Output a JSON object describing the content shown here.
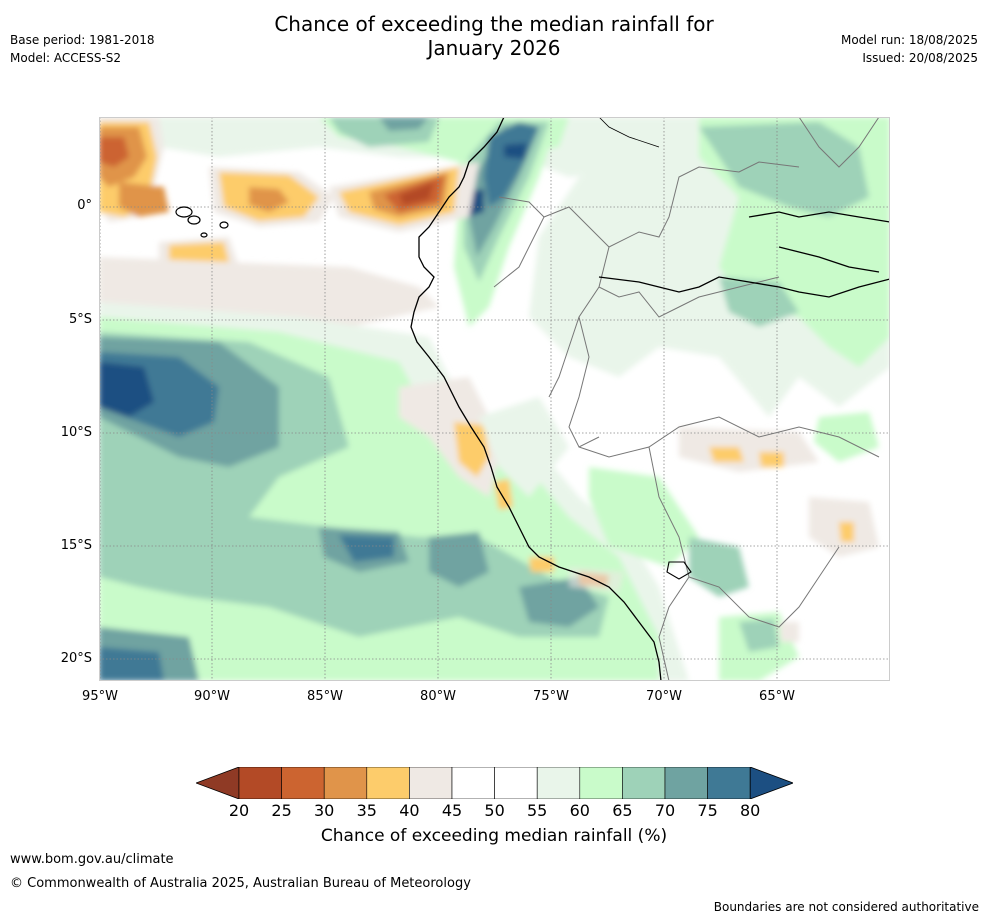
{
  "header": {
    "title_line1": "Chance of exceeding the median rainfall for",
    "title_line2": "January 2026",
    "base_period": "Base period: 1981-2018",
    "model": "Model: ACCESS-S2",
    "model_run": "Model run: 18/08/2025",
    "issued": "Issued: 20/08/2025"
  },
  "map": {
    "lat_labels": [
      "0°",
      "5°S",
      "10°S",
      "15°S",
      "20°S"
    ],
    "lon_labels": [
      "95°W",
      "90°W",
      "85°W",
      "80°W",
      "75°W",
      "70°W",
      "65°W"
    ],
    "extent": {
      "lon": [
        -95,
        -60
      ],
      "lat": [
        -21,
        4
      ]
    }
  },
  "colorbar": {
    "ticks": [
      "20",
      "25",
      "30",
      "35",
      "40",
      "45",
      "50",
      "55",
      "60",
      "65",
      "70",
      "75",
      "80"
    ],
    "colors": [
      "#b34a26",
      "#cc6430",
      "#e0944a",
      "#fdcc6b",
      "#efe9e4",
      "#ffffff",
      "#ffffff",
      "#e9f5ea",
      "#c9fbca",
      "#9ed2b8",
      "#6fa3a1",
      "#3f7995"
    ],
    "low_extend_color": "#8f3a25",
    "high_extend_color": "#1c4f82",
    "label": "Chance of exceeding median rainfall (%)"
  },
  "footer": {
    "website": "www.bom.gov.au/climate",
    "copyright": "© Commonwealth of Australia 2025, Australian Bureau of Meteorology",
    "disclaimer": "Boundaries are not considered authoritative"
  }
}
